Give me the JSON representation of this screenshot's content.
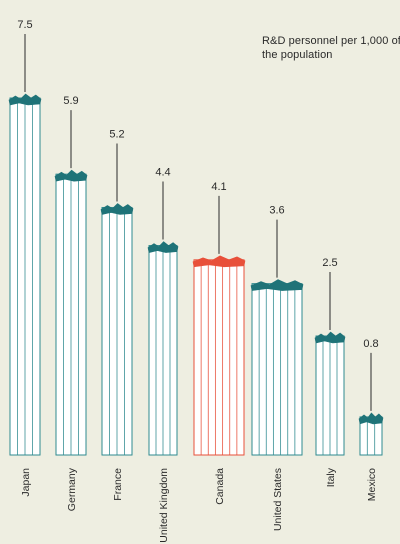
{
  "chart_data": {
    "type": "bar",
    "title": "R&D personnel per 1,000 of the population",
    "categories": [
      "Japan",
      "Germany",
      "France",
      "United Kingdom",
      "Canada",
      "United States",
      "Italy",
      "Mexico"
    ],
    "values": [
      7.5,
      5.9,
      5.2,
      4.4,
      4.1,
      3.6,
      2.5,
      0.8
    ],
    "value_labels": [
      "7.5",
      "5.9",
      "5.2",
      "4.4",
      "4.1",
      "3.6",
      "2.5",
      "0.8"
    ],
    "xlabel": "",
    "ylabel": "",
    "ylim": [
      0,
      7.5
    ],
    "grid": false,
    "highlight_category": "Canada",
    "colors": {
      "bar_top": "#1f7378",
      "bar_side": "#2f8b90",
      "bar_face": "#ffffff",
      "highlight": "#e8503a",
      "text": "#2a2a2a",
      "background": "#eeeee1"
    }
  }
}
